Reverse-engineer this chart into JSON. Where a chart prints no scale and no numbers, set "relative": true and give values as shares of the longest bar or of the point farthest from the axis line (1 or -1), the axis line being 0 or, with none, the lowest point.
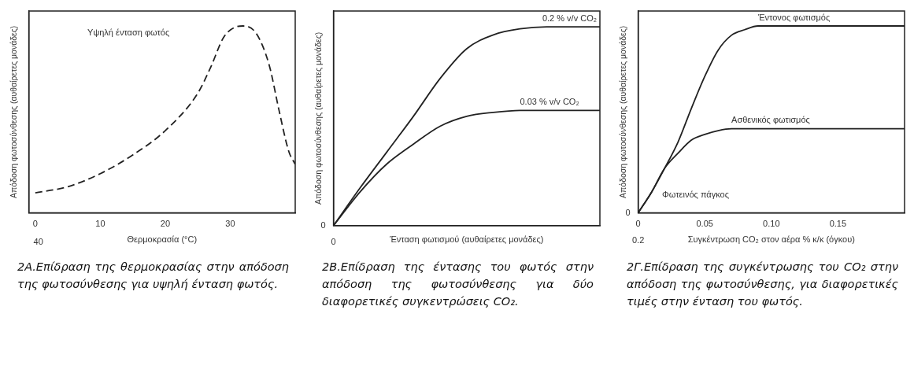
{
  "chart_data": [
    {
      "type": "line",
      "relative": true,
      "xlabel": "Θερμοκρασία (°C)",
      "ylabel": "Απόδοση φωτοσύνθεσης (αυθαίρετες μονάδες)",
      "xlim": [
        -1,
        40
      ],
      "xticks": [
        0,
        10,
        20,
        30
      ],
      "tick_labels": "x",
      "line_style": "dashed",
      "marker": "none",
      "x": [
        0,
        5,
        10,
        15,
        20,
        25,
        27,
        29,
        31,
        32,
        34,
        36,
        37.5,
        39,
        40
      ],
      "series": [
        {
          "color": "#222222",
          "values": [
            0.107,
            0.14,
            0.21,
            0.31,
            0.44,
            0.64,
            0.78,
            0.94,
            0.996,
            1,
            0.96,
            0.79,
            0.55,
            0.33,
            0.26
          ]
        }
      ],
      "annotations": [
        "Υψηλή ένταση φωτός",
        "40",
        "2Α.Επίδραση της θερμοκρασίας στην απόδοση της φωτοσύνθεσης για υψηλή ένταση φωτός."
      ]
    },
    {
      "type": "line",
      "relative": true,
      "xlabel": "Ένταση φωτισμού (αυθαίρετες μονάδες)",
      "ylabel": "Απόδοση φωτοσύνθεσης (αυθαίρετες μονάδες)",
      "tick_labels": false,
      "marker": "none",
      "categories": [
        null,
        null,
        null,
        null,
        null,
        null,
        null,
        null,
        null,
        null,
        null
      ],
      "series": [
        {
          "name": "0.2 % v/v CO₂",
          "color": "#222222",
          "values": [
            0,
            0.19,
            0.37,
            0.55,
            0.74,
            0.89,
            0.96,
            0.99,
            1,
            1,
            1
          ]
        },
        {
          "name": "0.03 % v/v CO₂",
          "color": "#222222",
          "values": [
            0,
            0.17,
            0.31,
            0.41,
            0.5,
            0.55,
            0.57,
            0.58,
            0.58,
            0.58,
            0.58
          ]
        }
      ],
      "annotations": [
        "0",
        "0",
        "2Β.Επίδραση της έντασης του φωτός στην απόδοση της φωτοσύνθεσης για δύο διαφορετικές συγκεντρώσεις CO₂."
      ]
    },
    {
      "type": "line",
      "relative": true,
      "xlabel": "Συγκέντρωση CO₂ στον αέρα % κ/κ (όγκου)",
      "ylabel": "Απόδοση φωτοσύνθεσης (αυθαίρετες μονάδες)",
      "xlim": [
        0,
        0.2
      ],
      "xticks": [
        {
          "value": 0,
          "label": "0"
        },
        {
          "value": 0.05,
          "label": "0.05"
        },
        {
          "value": 0.1,
          "label": "0.10"
        },
        {
          "value": 0.15,
          "label": "0.15"
        }
      ],
      "tick_labels": "x",
      "marker": "none",
      "x": [
        0,
        0.01,
        0.02,
        0.03,
        0.04,
        0.05,
        0.06,
        0.07,
        0.08,
        0.09,
        0.2
      ],
      "series": [
        {
          "name": "Έντονος φωτισμός",
          "color": "#222222",
          "values": [
            0,
            0.11,
            0.24,
            0.38,
            0.56,
            0.73,
            0.87,
            0.95,
            0.98,
            1,
            1
          ]
        },
        {
          "name": "Ασθενικός φωτισμός",
          "color": "#222222",
          "values": [
            0,
            0.11,
            0.24,
            0.32,
            0.39,
            0.42,
            0.44,
            0.45,
            0.45,
            0.45,
            0.45
          ]
        }
      ],
      "annotations": [
        "Φωτεινός πάγκος",
        "0",
        "0.2",
        "2Γ.Επίδραση της συγκέντρωσης του CO₂ στην απόδοση της φωτοσύνθεσης, για διαφορετικές τιμές στην ένταση του φωτός."
      ]
    }
  ]
}
